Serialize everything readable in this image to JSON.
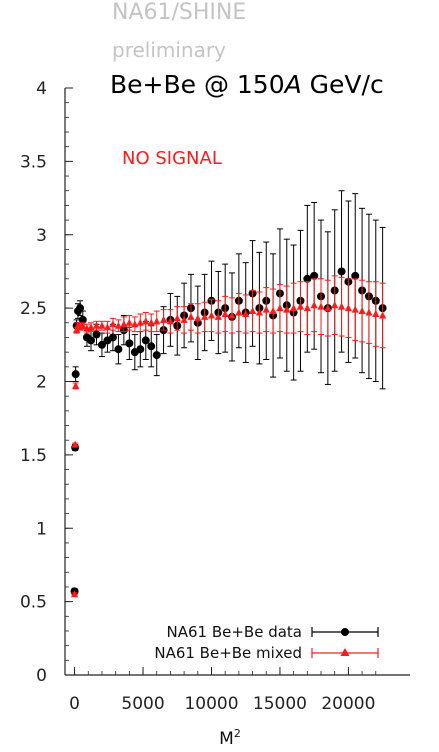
{
  "header": {
    "collaboration": "NA61/SHINE",
    "status": "preliminary",
    "system": "Be+Be @ 150",
    "system_italic": "A",
    "system_unit": " GeV/c",
    "annotation": "NO SIGNAL"
  },
  "colors": {
    "data": "#000000",
    "mixed": "#ff1a1a",
    "axis": "#222222"
  },
  "chart_data": {
    "type": "scatter",
    "title": "",
    "xlabel": "M",
    "xlabel_sup": "2",
    "ylabel": "",
    "xlim": [
      -700,
      24500
    ],
    "ylim": [
      0,
      4
    ],
    "x_ticks": [
      0,
      5000,
      10000,
      15000,
      20000
    ],
    "x_tick_labels": [
      "0",
      "5000",
      "10000",
      "15000",
      "20000"
    ],
    "y_ticks": [
      0,
      0.5,
      1,
      1.5,
      2,
      2.5,
      3,
      3.5,
      4
    ],
    "y_tick_labels": [
      "0",
      "0.5",
      "1",
      "1.5",
      "2",
      "2.5",
      "3",
      "3.5",
      "4"
    ],
    "grid": false,
    "legend": "bottom-right",
    "series": [
      {
        "name": "NA61 Be+Be data",
        "marker": "circle",
        "color": "#000000",
        "x": [
          0,
          40,
          80,
          150,
          250,
          400,
          600,
          900,
          1200,
          1600,
          2000,
          2400,
          2800,
          3200,
          3600,
          4000,
          4400,
          4800,
          5200,
          5600,
          6000,
          6500,
          7000,
          7500,
          8000,
          8500,
          9000,
          9500,
          10000,
          10500,
          11000,
          11500,
          12000,
          12500,
          13000,
          13500,
          14000,
          14500,
          15000,
          15500,
          16000,
          16500,
          17000,
          17500,
          18000,
          18500,
          19000,
          19500,
          20000,
          20500,
          21000,
          21500,
          22000,
          22500
        ],
        "y": [
          0.57,
          1.55,
          2.05,
          2.38,
          2.48,
          2.5,
          2.42,
          2.3,
          2.28,
          2.32,
          2.25,
          2.28,
          2.3,
          2.22,
          2.35,
          2.26,
          2.2,
          2.22,
          2.28,
          2.24,
          2.18,
          2.35,
          2.42,
          2.38,
          2.45,
          2.5,
          2.4,
          2.47,
          2.55,
          2.47,
          2.5,
          2.44,
          2.55,
          2.47,
          2.6,
          2.5,
          2.55,
          2.45,
          2.6,
          2.52,
          2.47,
          2.55,
          2.7,
          2.72,
          2.58,
          2.5,
          2.62,
          2.75,
          2.68,
          2.72,
          2.62,
          2.58,
          2.55,
          2.5
        ],
        "err": [
          0.02,
          0.02,
          0.05,
          0.04,
          0.05,
          0.05,
          0.06,
          0.06,
          0.07,
          0.07,
          0.08,
          0.08,
          0.09,
          0.1,
          0.1,
          0.11,
          0.12,
          0.12,
          0.13,
          0.14,
          0.14,
          0.16,
          0.18,
          0.2,
          0.22,
          0.23,
          0.25,
          0.26,
          0.27,
          0.28,
          0.3,
          0.3,
          0.32,
          0.34,
          0.36,
          0.38,
          0.4,
          0.42,
          0.44,
          0.45,
          0.46,
          0.48,
          0.5,
          0.5,
          0.52,
          0.52,
          0.55,
          0.55,
          0.55,
          0.56,
          0.56,
          0.56,
          0.55,
          0.55
        ]
      },
      {
        "name": "NA61 Be+Be mixed",
        "marker": "triangle",
        "color": "#ff1a1a",
        "x": [
          0,
          40,
          80,
          150,
          250,
          400,
          600,
          900,
          1200,
          1600,
          2000,
          2400,
          2800,
          3200,
          3600,
          4000,
          4400,
          4800,
          5200,
          5600,
          6000,
          6500,
          7000,
          7500,
          8000,
          8500,
          9000,
          9500,
          10000,
          10500,
          11000,
          11500,
          12000,
          12500,
          13000,
          13500,
          14000,
          14500,
          15000,
          15500,
          16000,
          16500,
          17000,
          17500,
          18000,
          18500,
          19000,
          19500,
          20000,
          20500,
          21000,
          21500,
          22000,
          22500
        ],
        "y": [
          0.55,
          1.57,
          1.97,
          2.35,
          2.38,
          2.37,
          2.38,
          2.36,
          2.37,
          2.38,
          2.38,
          2.37,
          2.39,
          2.38,
          2.39,
          2.4,
          2.39,
          2.4,
          2.41,
          2.4,
          2.41,
          2.42,
          2.41,
          2.43,
          2.42,
          2.44,
          2.43,
          2.44,
          2.45,
          2.44,
          2.46,
          2.45,
          2.47,
          2.46,
          2.48,
          2.47,
          2.49,
          2.48,
          2.5,
          2.49,
          2.5,
          2.51,
          2.5,
          2.52,
          2.51,
          2.5,
          2.52,
          2.51,
          2.5,
          2.49,
          2.48,
          2.47,
          2.46,
          2.45
        ],
        "err": [
          0.01,
          0.01,
          0.02,
          0.02,
          0.02,
          0.02,
          0.02,
          0.03,
          0.03,
          0.03,
          0.03,
          0.04,
          0.04,
          0.04,
          0.05,
          0.05,
          0.05,
          0.06,
          0.06,
          0.06,
          0.07,
          0.07,
          0.08,
          0.08,
          0.09,
          0.09,
          0.1,
          0.1,
          0.11,
          0.11,
          0.12,
          0.12,
          0.13,
          0.13,
          0.14,
          0.14,
          0.15,
          0.15,
          0.16,
          0.16,
          0.17,
          0.17,
          0.18,
          0.18,
          0.19,
          0.19,
          0.2,
          0.2,
          0.2,
          0.21,
          0.21,
          0.21,
          0.22,
          0.22
        ]
      }
    ]
  }
}
